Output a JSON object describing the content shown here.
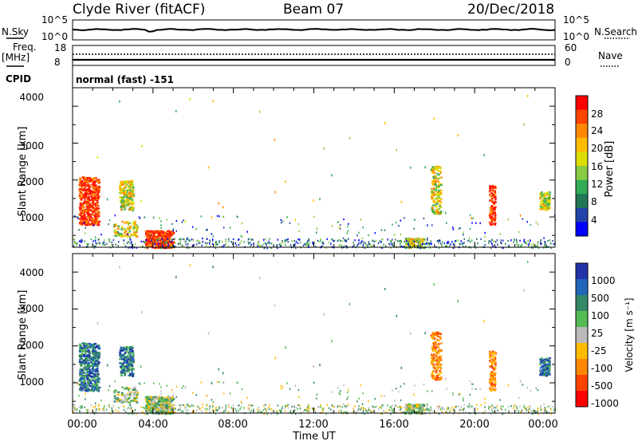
{
  "header": {
    "station": "Clyde River (fitACF)",
    "beam": "Beam 07",
    "date": "20/Dec/2018"
  },
  "noise_panel": {
    "left_label": "N.Sky",
    "right_label": "N.Search",
    "left_ticks": [
      "10^5",
      "10^0"
    ],
    "right_ticks": [
      "10^5",
      "10^0"
    ]
  },
  "freq_panel": {
    "left_label_top": "Freq.",
    "left_label_unit": "[MHz]",
    "right_label": "Nave",
    "left_ticks": [
      "18",
      "8"
    ],
    "right_ticks": [
      "60",
      "0"
    ],
    "cpid_label": "CPID",
    "cpid_text": "normal (fast) -151"
  },
  "power_panel": {
    "ylabel": "Slant Range [km]",
    "yticks": [
      "4000",
      "3000",
      "2000",
      "1000"
    ],
    "colorbar_label": "Power [dB]",
    "colorbar_ticks": [
      "28",
      "24",
      "20",
      "16",
      "12",
      "8",
      "4"
    ],
    "colorbar_colors": [
      "#ff0000",
      "#ff4400",
      "#ff8800",
      "#ffbb00",
      "#dddd00",
      "#88cc44",
      "#33aa55",
      "#227755",
      "#2244aa",
      "#0000ff"
    ]
  },
  "velocity_panel": {
    "ylabel": "Slant Range [km]",
    "yticks": [
      "4000",
      "3000",
      "2000",
      "1000"
    ],
    "colorbar_label": "Velocity [m s⁻¹]",
    "colorbar_ticks": [
      "1000",
      "500",
      "100",
      "25",
      "-25",
      "-100",
      "-500",
      "-1000"
    ],
    "colorbar_colors": [
      "#2233aa",
      "#2266bb",
      "#338866",
      "#55bb55",
      "#bbbbbb",
      "#ffbb00",
      "#ff8800",
      "#ff4400",
      "#ff0000"
    ]
  },
  "x_axis": {
    "ticks": [
      "00:00",
      "04:00",
      "08:00",
      "12:00",
      "16:00",
      "20:00",
      "00:00"
    ],
    "label": "Time UT"
  },
  "chart_data": {
    "type": "heatmap",
    "title": "Clyde River (fitACF) Beam 07 20/Dec/2018",
    "xlabel": "Time UT",
    "ylabel": "Slant Range [km]",
    "xlim_hours": [
      0,
      24
    ],
    "ylim_km": [
      180,
      4500
    ],
    "power_db_range": [
      0,
      30
    ],
    "velocity_range": [
      -1000,
      1000
    ],
    "scatter_regions": [
      {
        "t_start": 0.3,
        "t_end": 1.3,
        "range_start": 800,
        "range_end": 2100,
        "power": "high 20-28 dB",
        "velocity": "blue/green positive"
      },
      {
        "t_start": 2.3,
        "t_end": 3.0,
        "range_start": 1200,
        "range_end": 2000,
        "power": "mid 12-20 dB",
        "velocity": "green/blue positive"
      },
      {
        "t_start": 3.6,
        "t_end": 5.0,
        "range_start": 180,
        "range_end": 650,
        "power": "high 28 dB",
        "velocity": "green"
      },
      {
        "t_start": 17.8,
        "t_end": 18.3,
        "range_start": 1100,
        "range_end": 2400,
        "power": "mid-high",
        "velocity": "orange negative"
      },
      {
        "t_start": 20.7,
        "t_end": 21.0,
        "range_start": 800,
        "range_end": 1900,
        "power": "mid-high",
        "velocity": "orange negative"
      },
      {
        "t_start": 23.2,
        "t_end": 23.7,
        "range_start": 1200,
        "range_end": 1700,
        "power": "mid",
        "velocity": "blue positive"
      },
      {
        "t_start": 0.0,
        "t_end": 24.0,
        "range_start": 180,
        "range_end": 400,
        "power": "low-mid near range",
        "velocity": "grey/green mixed"
      }
    ]
  }
}
